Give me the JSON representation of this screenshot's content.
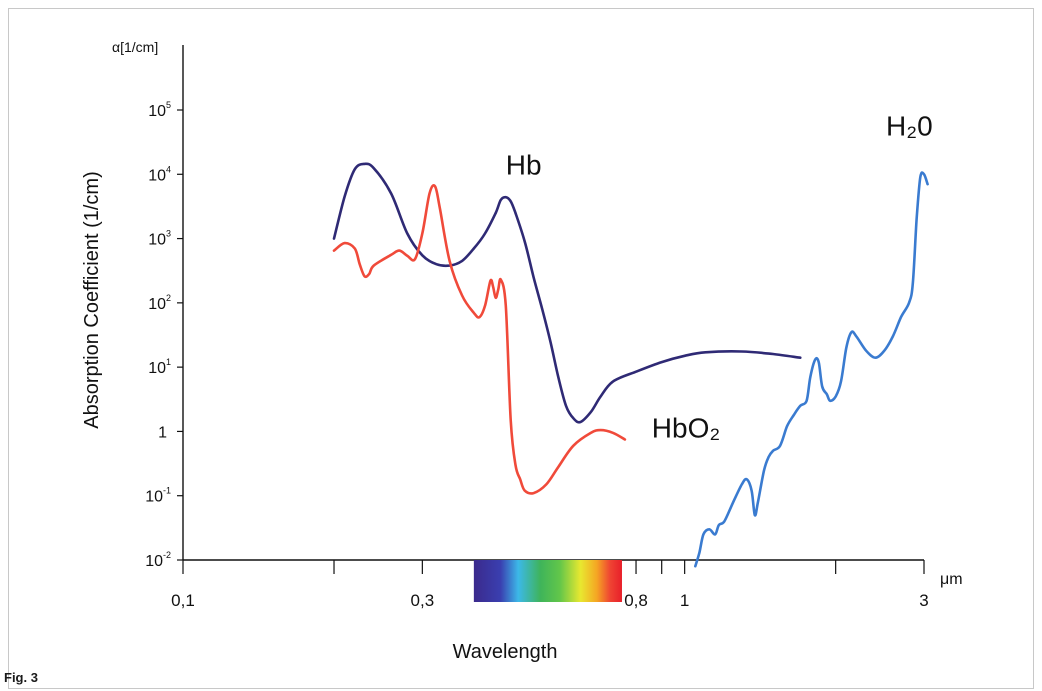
{
  "figure_label": "Fig. 3",
  "chart_data": {
    "type": "line",
    "title": "",
    "ylabel": "Absorption Coefficient (1/cm)",
    "y_unit_label": "α[1/cm]",
    "xlabel": "Wavelength",
    "x_unit_label": "μm",
    "xscale": "log",
    "yscale": "log",
    "xlim": [
      0.1,
      3
    ],
    "ylim": [
      0.01,
      100000
    ],
    "grid": false,
    "x_ticks": [
      0.1,
      0.2,
      0.3,
      0.4,
      0.5,
      0.6,
      0.7,
      0.8,
      0.9,
      1,
      2,
      3
    ],
    "x_tick_labels": [
      {
        "value": 0.1,
        "label": "0,1"
      },
      {
        "value": 0.3,
        "label": "0,3"
      },
      {
        "value": 0.8,
        "label": "0,8"
      },
      {
        "value": 1,
        "label": "1"
      },
      {
        "value": 3,
        "label": "3"
      }
    ],
    "y_tick_labels": [
      {
        "value": 0.01,
        "base": "10",
        "exp": "-2"
      },
      {
        "value": 0.1,
        "base": "10",
        "exp": "-1"
      },
      {
        "value": 1,
        "base": "1",
        "exp": ""
      },
      {
        "value": 10,
        "base": "10",
        "exp": "1"
      },
      {
        "value": 100,
        "base": "10",
        "exp": "2"
      },
      {
        "value": 1000,
        "base": "10",
        "exp": "3"
      },
      {
        "value": 10000,
        "base": "10",
        "exp": "4"
      },
      {
        "value": 100000,
        "base": "10",
        "exp": "5"
      }
    ],
    "visible_spectrum": {
      "from": 0.38,
      "to": 0.75
    },
    "series": [
      {
        "name": "Hb",
        "color": "#2f2a75",
        "points": [
          [
            0.2,
            1000
          ],
          [
            0.21,
            4500
          ],
          [
            0.22,
            12000
          ],
          [
            0.23,
            14500
          ],
          [
            0.24,
            12500
          ],
          [
            0.26,
            5000
          ],
          [
            0.28,
            1200
          ],
          [
            0.3,
            550
          ],
          [
            0.32,
            400
          ],
          [
            0.34,
            380
          ],
          [
            0.36,
            450
          ],
          [
            0.38,
            700
          ],
          [
            0.4,
            1200
          ],
          [
            0.42,
            2500
          ],
          [
            0.43,
            4000
          ],
          [
            0.44,
            4400
          ],
          [
            0.45,
            3800
          ],
          [
            0.46,
            2500
          ],
          [
            0.48,
            900
          ],
          [
            0.5,
            250
          ],
          [
            0.52,
            80
          ],
          [
            0.54,
            25
          ],
          [
            0.56,
            7
          ],
          [
            0.58,
            2.5
          ],
          [
            0.6,
            1.6
          ],
          [
            0.62,
            1.4
          ],
          [
            0.65,
            2
          ],
          [
            0.68,
            3.5
          ],
          [
            0.72,
            6
          ],
          [
            0.8,
            8.5
          ],
          [
            0.9,
            12
          ],
          [
            1.0,
            15
          ],
          [
            1.1,
            17
          ],
          [
            1.3,
            17.5
          ],
          [
            1.5,
            16
          ],
          [
            1.7,
            14
          ]
        ]
      },
      {
        "name": "HbO₂",
        "color": "#f04a3a",
        "points": [
          [
            0.2,
            650
          ],
          [
            0.21,
            850
          ],
          [
            0.22,
            700
          ],
          [
            0.225,
            400
          ],
          [
            0.23,
            260
          ],
          [
            0.235,
            280
          ],
          [
            0.24,
            380
          ],
          [
            0.26,
            560
          ],
          [
            0.27,
            650
          ],
          [
            0.28,
            540
          ],
          [
            0.29,
            480
          ],
          [
            0.3,
            1200
          ],
          [
            0.31,
            5000
          ],
          [
            0.318,
            6500
          ],
          [
            0.325,
            3000
          ],
          [
            0.34,
            450
          ],
          [
            0.36,
            130
          ],
          [
            0.38,
            70
          ],
          [
            0.39,
            60
          ],
          [
            0.4,
            90
          ],
          [
            0.41,
            220
          ],
          [
            0.415,
            180
          ],
          [
            0.42,
            120
          ],
          [
            0.425,
            160
          ],
          [
            0.43,
            230
          ],
          [
            0.44,
            90
          ],
          [
            0.45,
            1.5
          ],
          [
            0.46,
            0.3
          ],
          [
            0.47,
            0.18
          ],
          [
            0.48,
            0.12
          ],
          [
            0.5,
            0.11
          ],
          [
            0.53,
            0.15
          ],
          [
            0.56,
            0.28
          ],
          [
            0.6,
            0.6
          ],
          [
            0.65,
            0.95
          ],
          [
            0.68,
            1.05
          ],
          [
            0.72,
            0.95
          ],
          [
            0.76,
            0.75
          ]
        ]
      },
      {
        "name": "H₂0",
        "color": "#3a7bd0",
        "points": [
          [
            1.05,
            0.008
          ],
          [
            1.07,
            0.013
          ],
          [
            1.09,
            0.025
          ],
          [
            1.12,
            0.03
          ],
          [
            1.15,
            0.025
          ],
          [
            1.17,
            0.035
          ],
          [
            1.2,
            0.04
          ],
          [
            1.25,
            0.08
          ],
          [
            1.3,
            0.15
          ],
          [
            1.33,
            0.18
          ],
          [
            1.36,
            0.12
          ],
          [
            1.38,
            0.05
          ],
          [
            1.4,
            0.08
          ],
          [
            1.44,
            0.25
          ],
          [
            1.47,
            0.4
          ],
          [
            1.5,
            0.5
          ],
          [
            1.55,
            0.6
          ],
          [
            1.6,
            1.2
          ],
          [
            1.65,
            1.8
          ],
          [
            1.7,
            2.5
          ],
          [
            1.75,
            3
          ],
          [
            1.78,
            7
          ],
          [
            1.82,
            13
          ],
          [
            1.85,
            12
          ],
          [
            1.88,
            5
          ],
          [
            1.92,
            3.8
          ],
          [
            1.95,
            3
          ],
          [
            2.0,
            3.5
          ],
          [
            2.05,
            6
          ],
          [
            2.1,
            20
          ],
          [
            2.15,
            35
          ],
          [
            2.2,
            30
          ],
          [
            2.3,
            18
          ],
          [
            2.4,
            14
          ],
          [
            2.5,
            18
          ],
          [
            2.6,
            30
          ],
          [
            2.7,
            60
          ],
          [
            2.8,
            100
          ],
          [
            2.85,
            200
          ],
          [
            2.9,
            2000
          ],
          [
            2.95,
            9000
          ],
          [
            3.0,
            10000
          ],
          [
            3.05,
            7000
          ]
        ]
      }
    ],
    "annotations": [
      {
        "text": "Hb",
        "x": 0.44,
        "y": 10000,
        "size": 28
      },
      {
        "text": "HbO₂",
        "x": 0.86,
        "y": 0.8,
        "size": 28
      },
      {
        "text": "H₂0",
        "x": 2.52,
        "y": 40000,
        "size": 28
      }
    ]
  }
}
